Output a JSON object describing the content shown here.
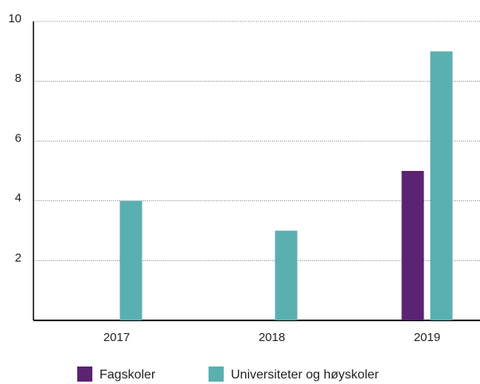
{
  "chart_data": {
    "type": "bar",
    "categories": [
      "2017",
      "2018",
      "2019"
    ],
    "series": [
      {
        "name": "Fagskoler",
        "color": "#5b2372",
        "values": [
          0,
          0,
          5
        ]
      },
      {
        "name": "Universiteter og høyskoler",
        "color": "#5aafb0",
        "values": [
          4,
          3,
          9
        ]
      }
    ],
    "ylim": [
      0,
      10
    ],
    "yticks": [
      2,
      4,
      6,
      8,
      10
    ],
    "grid": true
  }
}
